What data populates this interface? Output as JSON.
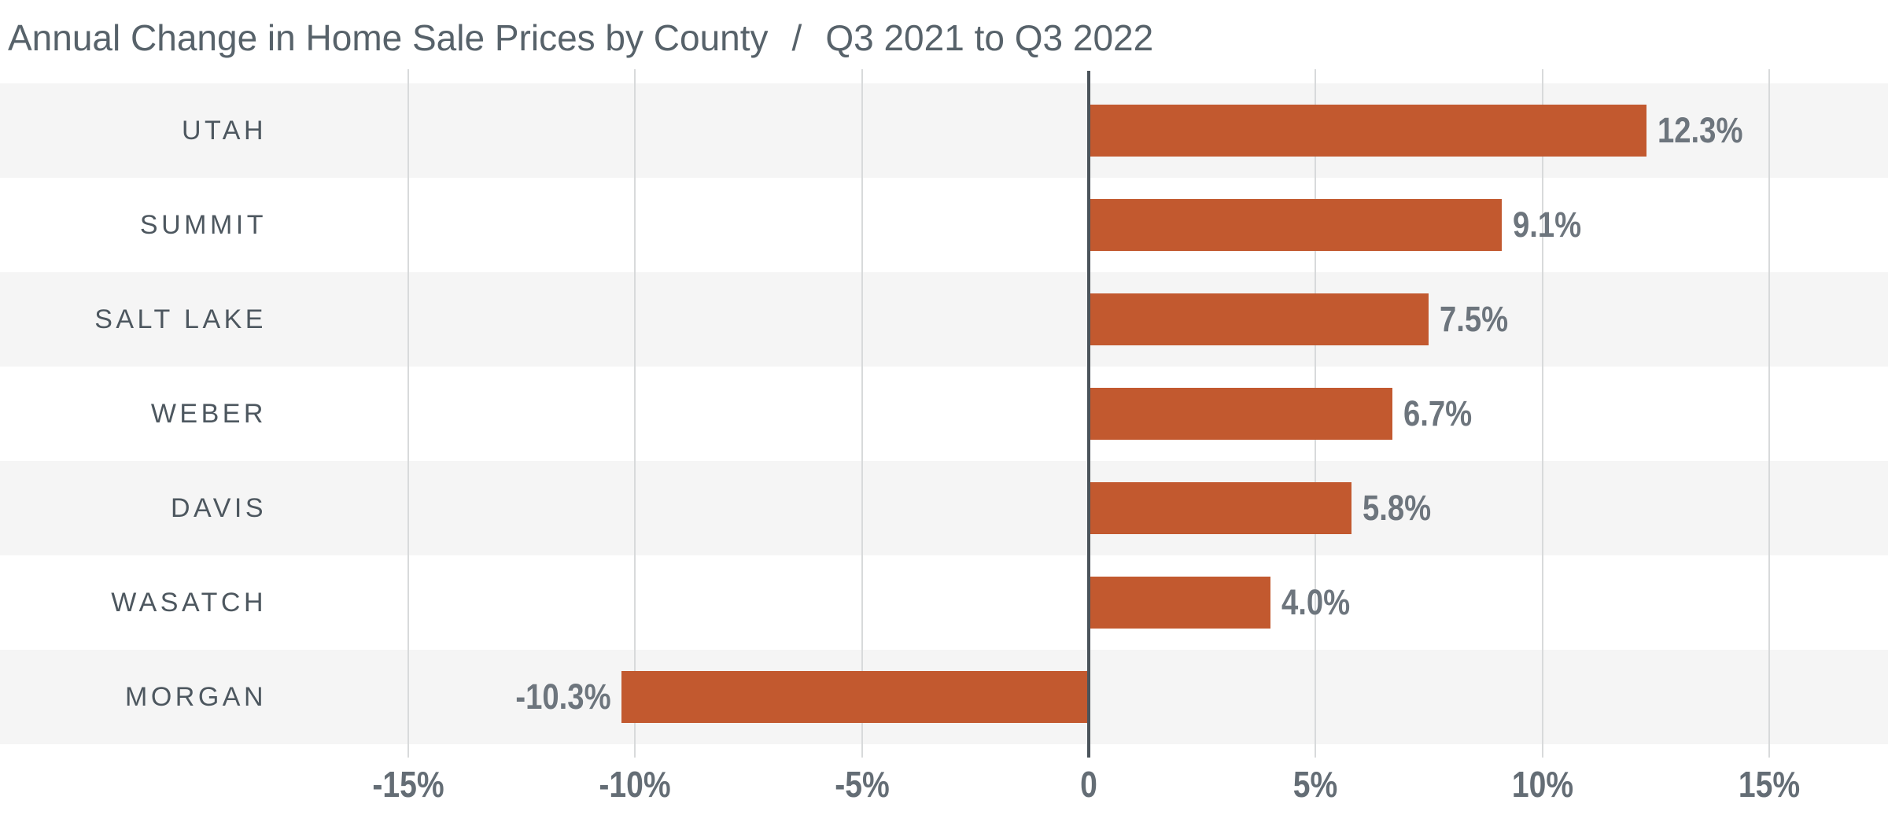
{
  "title": {
    "main": "Annual Change in Home Sale Prices by County",
    "separator": "/",
    "period": "Q3 2021 to Q3 2022"
  },
  "chart_data": {
    "type": "bar",
    "orientation": "horizontal",
    "title": "Annual Change in Home Sale Prices by County / Q3 2021 to Q3 2022",
    "xlabel": "",
    "ylabel": "",
    "categories": [
      "UTAH",
      "SUMMIT",
      "SALT LAKE",
      "WEBER",
      "DAVIS",
      "WASATCH",
      "MORGAN"
    ],
    "values": [
      12.3,
      9.1,
      7.5,
      6.7,
      5.8,
      4.0,
      -10.3
    ],
    "value_labels": [
      "12.3%",
      "9.1%",
      "7.5%",
      "6.7%",
      "5.8%",
      "4.0%",
      "-10.3%"
    ],
    "x_ticks": [
      {
        "value": -15,
        "label": "-15%"
      },
      {
        "value": -10,
        "label": "-10%"
      },
      {
        "value": -5,
        "label": "-5%"
      },
      {
        "value": 0,
        "label": "0"
      },
      {
        "value": 5,
        "label": "5%"
      },
      {
        "value": 10,
        "label": "10%"
      },
      {
        "value": 15,
        "label": "15%"
      }
    ],
    "xlim": [
      -24,
      17.6
    ],
    "grid": "vertical-gridlines-with-alternating-row-stripes",
    "legend": "none",
    "colors": {
      "bar": "#c2592f",
      "row_stripe": "#f5f5f5",
      "row_alt": "#ffffff",
      "gridline": "#d8dadb",
      "zero_line": "#4b545b",
      "title_text": "#57626a",
      "category_text": "#4d575f",
      "value_text": "#6d757d",
      "tick_text": "#646d75",
      "background": "#ffffff"
    }
  }
}
